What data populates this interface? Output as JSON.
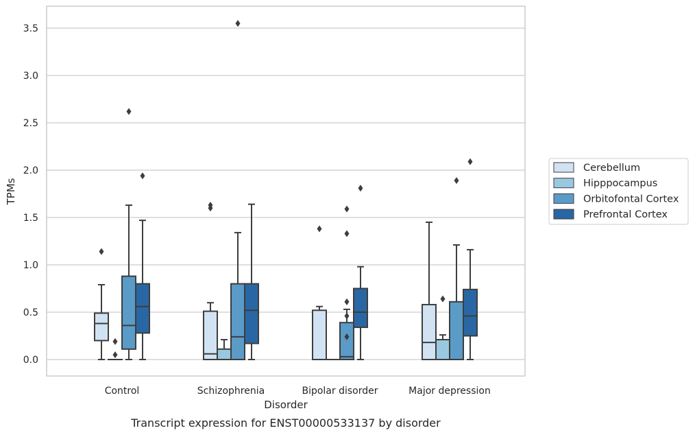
{
  "chart_data": {
    "type": "box",
    "caption": "Transcript expression for ENST00000533137 by disorder",
    "xlabel": "Disorder",
    "ylabel": "TPMs",
    "ylim": [
      -0.17,
      3.73
    ],
    "yticks": [
      "0.0",
      "0.5",
      "1.0",
      "1.5",
      "2.0",
      "2.5",
      "3.0",
      "3.5"
    ],
    "grid": "horizontal",
    "legend_position": "right",
    "categories": [
      "Control",
      "Schizophrenia",
      "Bipolar disorder",
      "Major depression"
    ],
    "series": [
      {
        "name": "Cerebellum",
        "color": "#d1e2f3",
        "boxes": [
          {
            "whislo": 0.0,
            "q1": 0.2,
            "med": 0.38,
            "q3": 0.49,
            "whishi": 0.79,
            "fliers": [
              1.14
            ]
          },
          {
            "whislo": 0.0,
            "q1": 0.0,
            "med": 0.06,
            "q3": 0.51,
            "whishi": 0.6,
            "fliers": [
              1.6,
              1.63
            ]
          },
          {
            "whislo": 0.0,
            "q1": 0.0,
            "med": 0.0,
            "q3": 0.52,
            "whishi": 0.56,
            "fliers": [
              1.38
            ]
          },
          {
            "whislo": 0.0,
            "q1": 0.0,
            "med": 0.18,
            "q3": 0.58,
            "whishi": 1.45,
            "fliers": []
          }
        ]
      },
      {
        "name": "Hipppocampus",
        "color": "#9ac8e0",
        "boxes": [
          {
            "whislo": 0.0,
            "q1": 0.0,
            "med": 0.0,
            "q3": 0.0,
            "whishi": 0.0,
            "fliers": [
              0.05,
              0.19
            ]
          },
          {
            "whislo": 0.0,
            "q1": 0.0,
            "med": 0.0,
            "q3": 0.11,
            "whishi": 0.21,
            "fliers": []
          },
          {
            "whislo": 0.0,
            "q1": 0.0,
            "med": 0.0,
            "q3": 0.0,
            "whishi": 0.0,
            "fliers": []
          },
          {
            "whislo": 0.0,
            "q1": 0.0,
            "med": 0.0,
            "q3": 0.21,
            "whishi": 0.26,
            "fliers": [
              0.64
            ]
          }
        ]
      },
      {
        "name": "Orbitofontal Cortex",
        "color": "#5a9bc8",
        "boxes": [
          {
            "whislo": 0.0,
            "q1": 0.11,
            "med": 0.36,
            "q3": 0.88,
            "whishi": 1.63,
            "fliers": [
              2.62
            ]
          },
          {
            "whislo": 0.0,
            "q1": 0.0,
            "med": 0.24,
            "q3": 0.8,
            "whishi": 1.34,
            "fliers": [
              3.55
            ]
          },
          {
            "whislo": 0.0,
            "q1": 0.0,
            "med": 0.03,
            "q3": 0.39,
            "whishi": 0.53,
            "fliers": [
              0.24,
              0.46,
              0.61,
              1.33,
              1.59
            ]
          },
          {
            "whislo": 0.0,
            "q1": 0.0,
            "med": 0.0,
            "q3": 0.61,
            "whishi": 1.21,
            "fliers": [
              1.89
            ]
          }
        ]
      },
      {
        "name": "Prefrontal Cortex",
        "color": "#2967a4",
        "boxes": [
          {
            "whislo": 0.0,
            "q1": 0.28,
            "med": 0.56,
            "q3": 0.8,
            "whishi": 1.47,
            "fliers": [
              1.94
            ]
          },
          {
            "whislo": 0.0,
            "q1": 0.17,
            "med": 0.52,
            "q3": 0.8,
            "whishi": 1.64,
            "fliers": []
          },
          {
            "whislo": 0.0,
            "q1": 0.34,
            "med": 0.5,
            "q3": 0.75,
            "whishi": 0.98,
            "fliers": [
              1.81
            ]
          },
          {
            "whislo": 0.0,
            "q1": 0.25,
            "med": 0.46,
            "q3": 0.74,
            "whishi": 1.16,
            "fliers": [
              2.09
            ]
          }
        ]
      }
    ]
  }
}
